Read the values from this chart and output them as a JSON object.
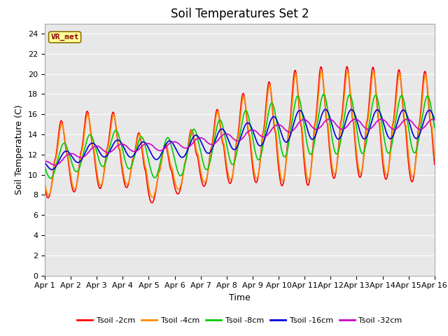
{
  "title": "Soil Temperatures Set 2",
  "xlabel": "Time",
  "ylabel": "Soil Temperature (C)",
  "annotation": "VR_met",
  "ylim": [
    0,
    25
  ],
  "yticks": [
    0,
    2,
    4,
    6,
    8,
    10,
    12,
    14,
    16,
    18,
    20,
    22,
    24
  ],
  "xtick_labels": [
    "Apr 1",
    "Apr 2",
    "Apr 3",
    "Apr 4",
    "Apr 5",
    "Apr 6",
    "Apr 7",
    "Apr 8",
    "Apr 9",
    "Apr 10",
    "Apr 11",
    "Apr 12",
    "Apr 13",
    "Apr 14",
    "Apr 15",
    "Apr 16"
  ],
  "series": {
    "Tsoil -2cm": {
      "color": "#ff0000"
    },
    "Tsoil -4cm": {
      "color": "#ff8c00"
    },
    "Tsoil -8cm": {
      "color": "#00cc00"
    },
    "Tsoil -16cm": {
      "color": "#0000dd"
    },
    "Tsoil -32cm": {
      "color": "#cc00cc"
    }
  },
  "bg_color": "#e8e8e8",
  "grid_color": "#ffffff",
  "title_fontsize": 12,
  "axis_label_fontsize": 9,
  "tick_fontsize": 8,
  "linewidth": 1.2
}
